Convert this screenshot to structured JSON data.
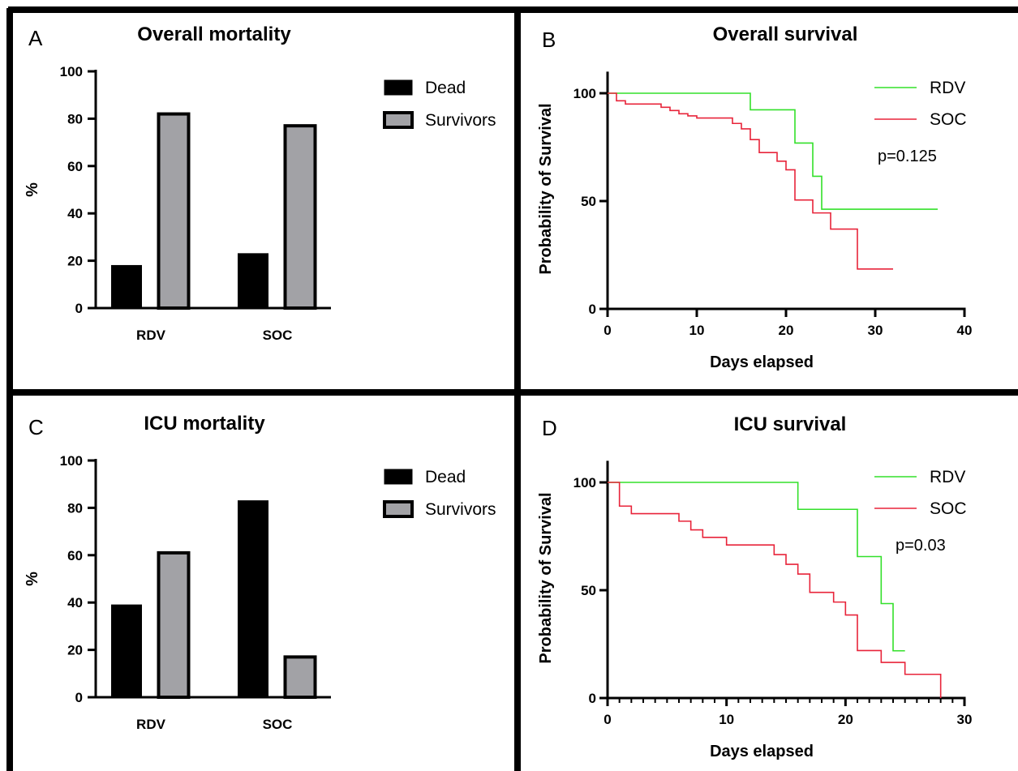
{
  "colors": {
    "dead": "#000000",
    "survivors": "#a2a2a6",
    "rdv": "#33e02a",
    "soc": "#e8243a"
  },
  "chart_data": [
    {
      "panel": "A",
      "type": "bar",
      "title": "Overall mortality",
      "xlabel": "",
      "ylabel": "%",
      "ylim": [
        0,
        100
      ],
      "yticks": [
        "0",
        "20",
        "40",
        "60",
        "80",
        "100"
      ],
      "categories": [
        "RDV",
        "SOC"
      ],
      "series": [
        {
          "name": "Dead",
          "values": [
            18,
            23
          ]
        },
        {
          "name": "Survivors",
          "values": [
            82,
            77
          ]
        }
      ],
      "legend": "top-right",
      "grid": false
    },
    {
      "panel": "B",
      "type": "line",
      "title": "Overall survival",
      "xlabel": "Days elapsed",
      "ylabel": "Probability of Survival",
      "xlim": [
        0,
        40
      ],
      "ylim": [
        0,
        110
      ],
      "xticks": [
        "0",
        "10",
        "20",
        "30",
        "40"
      ],
      "yticks": [
        "0",
        "50",
        "100"
      ],
      "series": [
        {
          "name": "RDV",
          "x": [
            0,
            16,
            21,
            23,
            24,
            37
          ],
          "y": [
            100,
            92.3,
            76.9,
            61.5,
            46.2,
            46.2
          ]
        },
        {
          "name": "SOC",
          "x": [
            0,
            1,
            2,
            6,
            7,
            8,
            9,
            10,
            14,
            15,
            16,
            17,
            19,
            20,
            21,
            23,
            25,
            28,
            32
          ],
          "y": [
            100,
            96.5,
            95,
            93.5,
            92,
            90.5,
            89.5,
            88.5,
            86,
            83.5,
            78.5,
            72.5,
            68.5,
            64.5,
            50.5,
            44.5,
            37,
            18.5,
            18.5
          ]
        }
      ],
      "annotation": "p=0.125",
      "legend": "top-right",
      "grid": false
    },
    {
      "panel": "C",
      "type": "bar",
      "title": "ICU mortality",
      "xlabel": "",
      "ylabel": "%",
      "ylim": [
        0,
        100
      ],
      "yticks": [
        "0",
        "20",
        "40",
        "60",
        "80",
        "100"
      ],
      "categories": [
        "RDV",
        "SOC"
      ],
      "series": [
        {
          "name": "Dead",
          "values": [
            39,
            83
          ]
        },
        {
          "name": "Survivors",
          "values": [
            61,
            17
          ]
        }
      ],
      "legend": "top-right",
      "grid": false
    },
    {
      "panel": "D",
      "type": "line",
      "title": "ICU survival",
      "xlabel": "Days elapsed",
      "ylabel": "Probability of Survival",
      "xlim": [
        0,
        30
      ],
      "ylim": [
        0,
        110
      ],
      "xticks": [
        "0",
        "10",
        "20",
        "30"
      ],
      "yticks": [
        "0",
        "50",
        "100"
      ],
      "series": [
        {
          "name": "RDV",
          "x": [
            0,
            16,
            21,
            23,
            24,
            25
          ],
          "y": [
            100,
            87.5,
            65.6,
            43.8,
            21.9,
            21.9
          ]
        },
        {
          "name": "SOC",
          "x": [
            0,
            1,
            2,
            6,
            7,
            8,
            10,
            14,
            15,
            16,
            17,
            19,
            20,
            21,
            23,
            25,
            28
          ],
          "y": [
            100,
            89,
            85.5,
            82,
            78,
            74.5,
            71,
            66.5,
            62,
            57.5,
            49,
            44.5,
            38.5,
            22,
            16.5,
            11,
            0
          ]
        }
      ],
      "annotation": "p=0.03",
      "legend": "top-right",
      "grid": false
    }
  ]
}
